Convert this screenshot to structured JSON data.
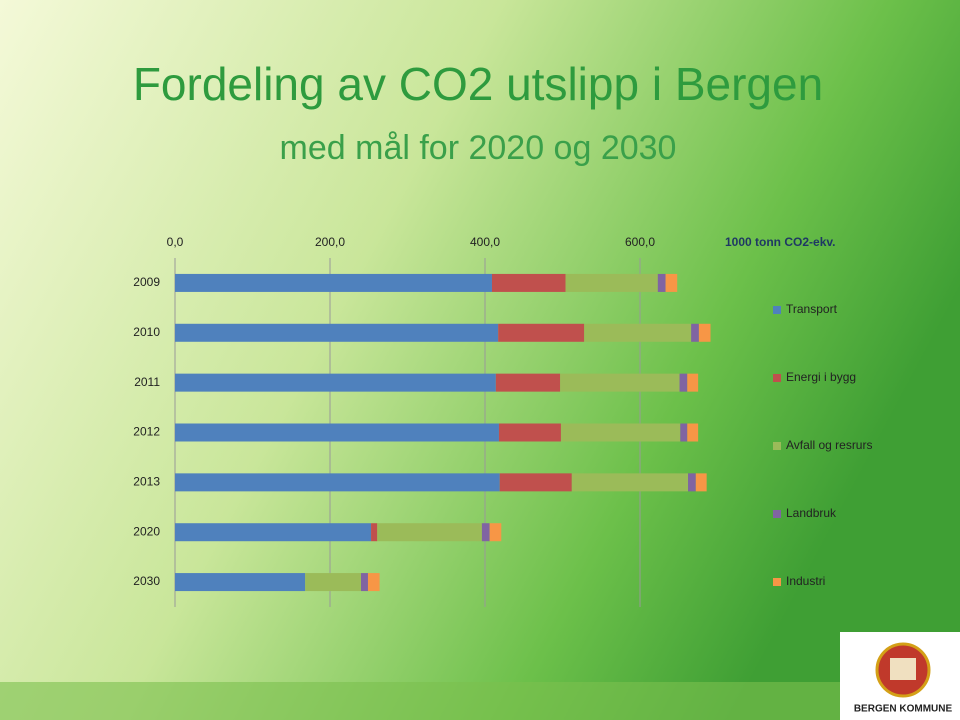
{
  "chart_data": {
    "type": "stacked_barh",
    "title": "Fordeling av CO2 utslipp i Bergen",
    "subtitle": "med mål for 2020 og 2030",
    "x_label": "1000 tonn CO2-ekv.",
    "categories": [
      "2009",
      "2010",
      "2011",
      "2012",
      "2013",
      "2020",
      "2030"
    ],
    "series": [
      {
        "name": "Transport",
        "color": "#4f81bd",
        "values": [
          409,
          417,
          414,
          418,
          419,
          253,
          168
        ]
      },
      {
        "name": "Energi i bygg",
        "color": "#c0504d",
        "values": [
          95,
          111,
          83,
          80,
          93,
          8,
          0
        ]
      },
      {
        "name": "Avfall og resrurs",
        "color": "#9bbb59",
        "values": [
          119,
          138,
          154,
          154,
          150,
          135,
          72
        ]
      },
      {
        "name": "Landbruk",
        "color": "#8064a2",
        "values": [
          10,
          10,
          10,
          9,
          10,
          10,
          9
        ]
      },
      {
        "name": "Industri",
        "color": "#f79646",
        "values": [
          15,
          15,
          14,
          14,
          14,
          15,
          15
        ]
      }
    ],
    "xlim": [
      0,
      800
    ],
    "xticks": [
      {
        "value": 0,
        "label": "0,0"
      },
      {
        "value": 200,
        "label": "200,0"
      },
      {
        "value": 400,
        "label": "400,0"
      },
      {
        "value": 600,
        "label": "600,0"
      }
    ],
    "grid": true,
    "legend": "right"
  },
  "logo": {
    "text": "BERGEN KOMMUNE"
  }
}
